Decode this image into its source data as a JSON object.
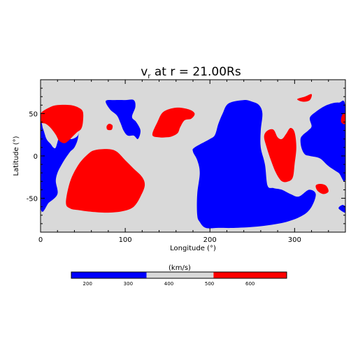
{
  "chart_data": {
    "type": "heatmap",
    "title": {
      "main": "v",
      "sub": "r",
      "rest": " at r = 21.00Rs"
    },
    "xlabel": "Longitude (°)",
    "ylabel": "Latitude (°)",
    "xlim": [
      0,
      360
    ],
    "ylim": [
      -90,
      90
    ],
    "xticks": [
      0,
      100,
      200,
      300
    ],
    "yticks": [
      50,
      0,
      -50
    ],
    "grid": false,
    "colorbar": {
      "title": "(km/s)",
      "range": [
        160,
        690
      ],
      "ticks": [
        200,
        300,
        400,
        500,
        600
      ],
      "bins": [
        {
          "from": 160,
          "to": 345,
          "color": "#0000ff"
        },
        {
          "from": 345,
          "to": 510,
          "color": "#d9d9d9"
        },
        {
          "from": 510,
          "to": 690,
          "color": "#ff0000"
        }
      ]
    },
    "regions": [
      {
        "level": "slow",
        "color": "#0000ff",
        "points": [
          [
            0,
            35
          ],
          [
            3,
            32
          ],
          [
            7,
            20
          ],
          [
            12,
            14
          ],
          [
            15,
            10
          ],
          [
            18,
            10
          ],
          [
            22,
            22
          ],
          [
            28,
            28
          ],
          [
            35,
            20
          ],
          [
            44,
            24
          ],
          [
            46,
            35
          ],
          [
            44,
            20
          ],
          [
            40,
            10
          ],
          [
            35,
            5
          ],
          [
            30,
            -2
          ],
          [
            25,
            -10
          ],
          [
            20,
            -20
          ],
          [
            18,
            -30
          ],
          [
            20,
            -45
          ],
          [
            10,
            -55
          ],
          [
            0,
            -60
          ]
        ]
      },
      {
        "level": "slow",
        "color": "#0000ff",
        "points": [
          [
            77,
            65
          ],
          [
            88,
            66
          ],
          [
            100,
            66
          ],
          [
            110,
            66
          ],
          [
            112,
            58
          ],
          [
            108,
            46
          ],
          [
            113,
            40
          ],
          [
            118,
            30
          ],
          [
            115,
            20
          ],
          [
            110,
            24
          ],
          [
            103,
            24
          ],
          [
            98,
            30
          ],
          [
            94,
            40
          ],
          [
            90,
            48
          ],
          [
            82,
            55
          ]
        ]
      },
      {
        "level": "slow",
        "color": "#0000ff",
        "points": [
          [
            182,
            10
          ],
          [
            200,
            20
          ],
          [
            206,
            25
          ],
          [
            210,
            38
          ],
          [
            215,
            50
          ],
          [
            222,
            62
          ],
          [
            240,
            66
          ],
          [
            250,
            64
          ],
          [
            258,
            60
          ],
          [
            262,
            50
          ],
          [
            260,
            30
          ],
          [
            260,
            10
          ],
          [
            265,
            -10
          ],
          [
            268,
            -35
          ],
          [
            275,
            -38
          ],
          [
            285,
            -40
          ],
          [
            295,
            -45
          ],
          [
            305,
            -48
          ],
          [
            317,
            -40
          ],
          [
            325,
            -45
          ],
          [
            320,
            -60
          ],
          [
            310,
            -70
          ],
          [
            290,
            -78
          ],
          [
            260,
            -83
          ],
          [
            230,
            -85
          ],
          [
            210,
            -85
          ],
          [
            195,
            -85
          ],
          [
            188,
            -78
          ],
          [
            185,
            -70
          ],
          [
            185,
            -45
          ],
          [
            188,
            -20
          ],
          [
            185,
            -5
          ],
          [
            180,
            5
          ]
        ]
      },
      {
        "level": "slow",
        "color": "#0000ff",
        "points": [
          [
            360,
            57
          ],
          [
            352,
            63
          ],
          [
            338,
            60
          ],
          [
            325,
            52
          ],
          [
            318,
            45
          ],
          [
            320,
            35
          ],
          [
            316,
            30
          ],
          [
            310,
            25
          ],
          [
            307,
            20
          ],
          [
            308,
            10
          ],
          [
            312,
            2
          ],
          [
            318,
            0
          ],
          [
            330,
            -3
          ],
          [
            340,
            -12
          ],
          [
            352,
            -20
          ],
          [
            360,
            -25
          ]
        ]
      },
      {
        "level": "slow",
        "color": "#0000ff",
        "points": [
          [
            360,
            -60
          ],
          [
            356,
            -58
          ],
          [
            352,
            -62
          ],
          [
            360,
            -67
          ]
        ]
      },
      {
        "level": "fast",
        "color": "#ff0000",
        "points": [
          [
            0,
            50
          ],
          [
            10,
            57
          ],
          [
            20,
            60
          ],
          [
            35,
            60
          ],
          [
            45,
            57
          ],
          [
            50,
            52
          ],
          [
            50,
            40
          ],
          [
            48,
            32
          ],
          [
            43,
            28
          ],
          [
            37,
            22
          ],
          [
            33,
            18
          ],
          [
            28,
            15
          ],
          [
            22,
            18
          ],
          [
            18,
            25
          ],
          [
            12,
            33
          ],
          [
            6,
            38
          ],
          [
            0,
            40
          ]
        ]
      },
      {
        "level": "fast",
        "color": "#ff0000",
        "points": [
          [
            30,
            -55
          ],
          [
            35,
            -30
          ],
          [
            45,
            -10
          ],
          [
            57,
            3
          ],
          [
            65,
            7
          ],
          [
            80,
            8
          ],
          [
            90,
            5
          ],
          [
            100,
            -5
          ],
          [
            110,
            -15
          ],
          [
            120,
            -25
          ],
          [
            123,
            -35
          ],
          [
            118,
            -48
          ],
          [
            110,
            -60
          ],
          [
            98,
            -65
          ],
          [
            80,
            -67
          ],
          [
            60,
            -66
          ],
          [
            45,
            -64
          ],
          [
            35,
            -62
          ]
        ]
      },
      {
        "level": "fast",
        "color": "#ff0000",
        "points": [
          [
            132,
            25
          ],
          [
            138,
            40
          ],
          [
            145,
            52
          ],
          [
            160,
            57
          ],
          [
            175,
            55
          ],
          [
            182,
            50
          ],
          [
            178,
            44
          ],
          [
            170,
            42
          ],
          [
            165,
            34
          ],
          [
            162,
            27
          ],
          [
            155,
            23
          ],
          [
            148,
            22
          ],
          [
            140,
            22
          ]
        ]
      },
      {
        "level": "fast",
        "color": "#ff0000",
        "points": [
          [
            78,
            35
          ],
          [
            81,
            38
          ],
          [
            85,
            36
          ],
          [
            84,
            31
          ],
          [
            79,
            31
          ]
        ]
      },
      {
        "level": "fast",
        "color": "#ff0000",
        "points": [
          [
            264,
            23
          ],
          [
            268,
            30
          ],
          [
            275,
            31
          ],
          [
            280,
            22
          ],
          [
            285,
            20
          ],
          [
            290,
            26
          ],
          [
            295,
            33
          ],
          [
            300,
            28
          ],
          [
            302,
            10
          ],
          [
            300,
            -10
          ],
          [
            298,
            -25
          ],
          [
            293,
            -30
          ],
          [
            285,
            -30
          ],
          [
            278,
            -20
          ],
          [
            272,
            -5
          ],
          [
            267,
            10
          ]
        ]
      },
      {
        "level": "fast",
        "color": "#ff0000",
        "points": [
          [
            303,
            67
          ],
          [
            312,
            70
          ],
          [
            320,
            73
          ],
          [
            318,
            66
          ],
          [
            310,
            64
          ]
        ]
      },
      {
        "level": "fast",
        "color": "#ff0000",
        "points": [
          [
            325,
            -35
          ],
          [
            330,
            -33
          ],
          [
            337,
            -35
          ],
          [
            340,
            -42
          ],
          [
            334,
            -45
          ],
          [
            327,
            -41
          ]
        ]
      },
      {
        "level": "fast",
        "color": "#ff0000",
        "points": [
          [
            360,
            50
          ],
          [
            356,
            48
          ],
          [
            355,
            40
          ],
          [
            360,
            38
          ]
        ]
      }
    ]
  }
}
